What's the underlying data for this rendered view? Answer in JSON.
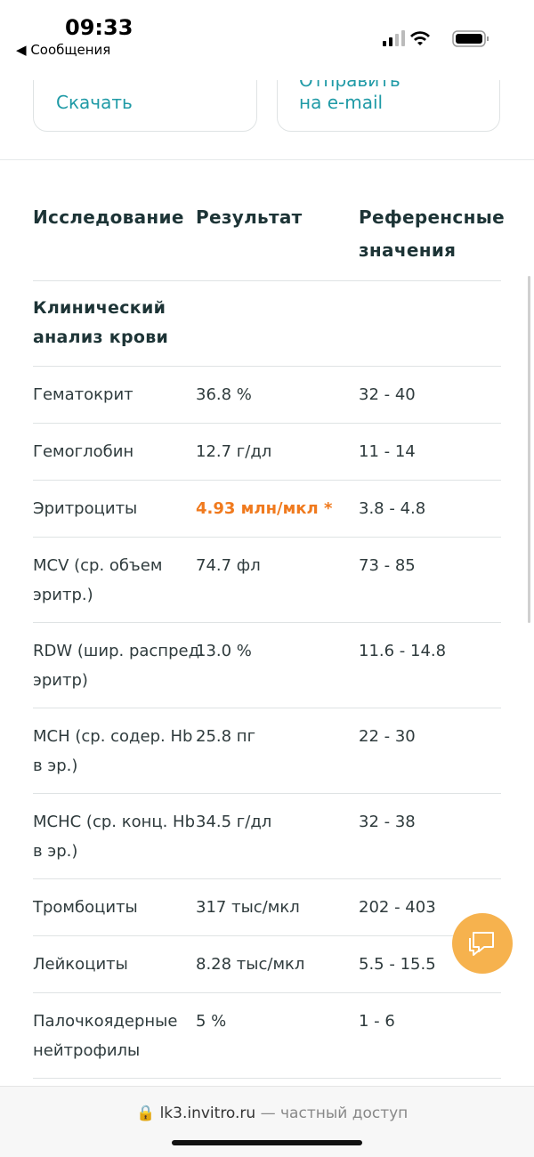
{
  "status_bar": {
    "time": "09:33",
    "back": "Сообщения"
  },
  "actions": {
    "download": "Скачать",
    "email": [
      "Отправить",
      "на e-mail"
    ]
  },
  "table": {
    "headers": {
      "name": "Исследование",
      "result": "Результат",
      "reference": [
        "Референсные",
        "значения"
      ]
    },
    "section": [
      "Клинический",
      "анализ крови"
    ],
    "rows": [
      {
        "name": [
          "Гематокрит"
        ],
        "result": "36.8 %",
        "reference": "32 - 40"
      },
      {
        "name": [
          "Гемоглобин"
        ],
        "result": "12.7 г/дл",
        "reference": "11 - 14"
      },
      {
        "name": [
          "Эритроциты"
        ],
        "result": "4.93 млн/мкл *",
        "reference": "3.8 - 4.8",
        "flagged": true
      },
      {
        "name": [
          "MCV (ср. объем",
          "эритр.)"
        ],
        "result": "74.7 фл",
        "reference": "73 - 85"
      },
      {
        "name": [
          "RDW (шир. распред.",
          "эритр)"
        ],
        "result": "13.0 %",
        "reference": "11.6 - 14.8"
      },
      {
        "name": [
          "MCH (ср. содер. Hb",
          "в эр.)"
        ],
        "result": "25.8 пг",
        "reference": "22 - 30"
      },
      {
        "name": [
          "MCHC (ср. конц. Hb",
          "в эр.)"
        ],
        "result": "34.5 г/дл",
        "reference": "32 - 38"
      },
      {
        "name": [
          "Тромбоциты"
        ],
        "result": "317 тыс/мкл",
        "reference": "202 - 403"
      },
      {
        "name": [
          "Лейкоциты"
        ],
        "result": "8.28 тыс/мкл",
        "reference": "5.5 - 15.5"
      },
      {
        "name": [
          "Палочкоядерные",
          "нейтрофилы"
        ],
        "result": "5 %",
        "reference": "1 - 6"
      }
    ]
  },
  "footer": {
    "domain": "lk3.invitro.ru",
    "note": "— частный доступ"
  }
}
